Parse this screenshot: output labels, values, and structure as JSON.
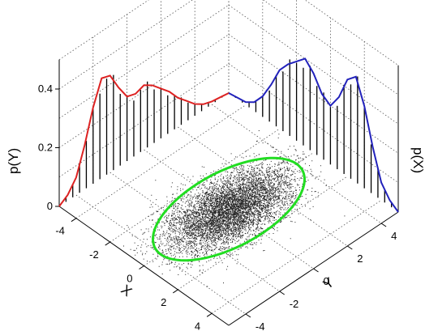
{
  "chart_data": {
    "type": "scatter",
    "title": "",
    "x_axis": {
      "label": "X",
      "ticks": [
        "-4",
        "-2",
        "0",
        "2",
        "4"
      ],
      "range": [
        -5,
        5
      ]
    },
    "y_axis": {
      "label": "Y",
      "ticks": [
        "-4",
        "-2",
        "0",
        "2",
        "4"
      ],
      "range": [
        -5,
        5
      ]
    },
    "z_axis": {
      "ticks": [
        "0",
        "0.2",
        "0.4"
      ],
      "range": [
        0,
        0.5
      ]
    },
    "marginal_y_label": "p(Y)",
    "marginal_x_label": "p(X)",
    "scatter": {
      "color": "#000000",
      "point_count": 9000,
      "mean": [
        0,
        0
      ],
      "ellipse_half_axes": [
        4,
        2
      ]
    },
    "ellipse_color": "#22dd22",
    "marginal_py": {
      "name": "p(Y)",
      "color": "#dd2222",
      "x": [
        -5,
        -4.5,
        -4,
        -3.5,
        -3,
        -2.5,
        -2,
        -1.5,
        -1,
        -0.5,
        0,
        0.5,
        1,
        1.5,
        2,
        2.5,
        3,
        3.5,
        4,
        4.5,
        5
      ],
      "density": [
        0.0,
        0.02,
        0.06,
        0.15,
        0.26,
        0.34,
        0.33,
        0.27,
        0.22,
        0.21,
        0.22,
        0.2,
        0.17,
        0.14,
        0.1,
        0.07,
        0.04,
        0.02,
        0.01,
        0.005,
        0.0
      ]
    },
    "marginal_px": {
      "name": "p(X)",
      "color": "#2222bb",
      "x": [
        -5,
        -4.5,
        -4,
        -3.5,
        -3,
        -2.5,
        -2,
        -1.5,
        -1,
        -0.5,
        0,
        0.5,
        1,
        1.5,
        2,
        2.5,
        3,
        3.5,
        4,
        4.5,
        5
      ],
      "density": [
        0.0,
        0.005,
        0.01,
        0.03,
        0.07,
        0.13,
        0.2,
        0.24,
        0.27,
        0.3,
        0.27,
        0.22,
        0.2,
        0.25,
        0.33,
        0.36,
        0.28,
        0.16,
        0.06,
        0.02,
        0.0
      ]
    },
    "histogram_bars": 24,
    "grid": true
  }
}
